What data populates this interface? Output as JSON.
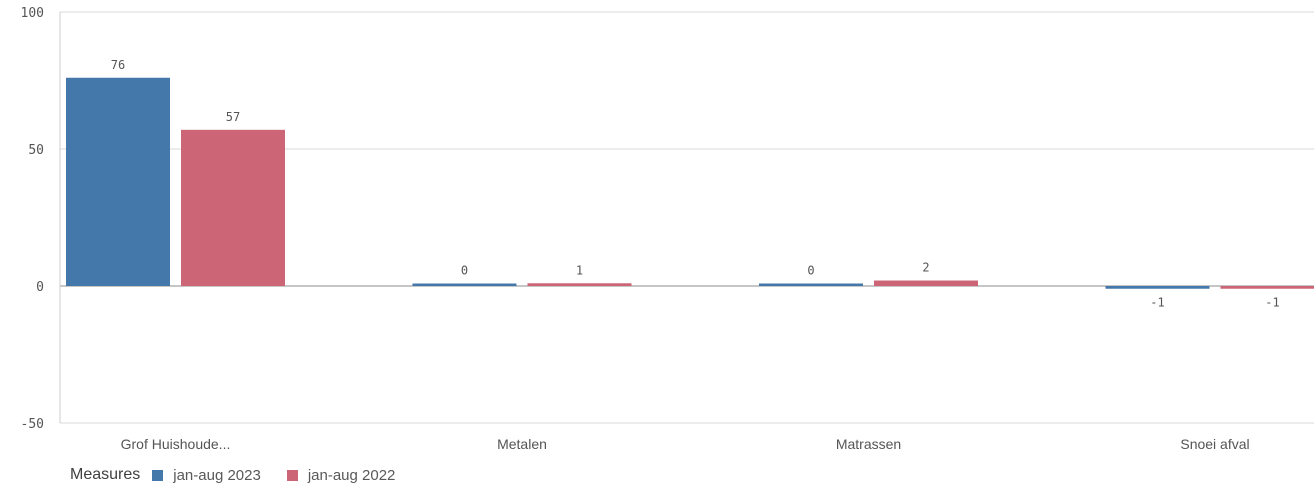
{
  "chart_data": {
    "type": "bar",
    "categories": [
      "Grof Huishoude...",
      "Metalen",
      "Matrassen",
      "Snoei afval"
    ],
    "series": [
      {
        "name": "jan-aug 2023",
        "values": [
          76,
          0,
          0,
          -1
        ],
        "labels": [
          "76",
          "0",
          "0",
          "-1"
        ],
        "color": "#4477aa"
      },
      {
        "name": "jan-aug 2022",
        "values": [
          57,
          1,
          2,
          -1
        ],
        "labels": [
          "57",
          "1",
          "2",
          "-1"
        ],
        "color": "#cc6677"
      }
    ],
    "ylim": [
      -50,
      100
    ],
    "yticks": [
      100,
      50,
      0,
      -50
    ],
    "grid": true,
    "legend": {
      "title": "Measures",
      "position": "bottom-left"
    }
  }
}
